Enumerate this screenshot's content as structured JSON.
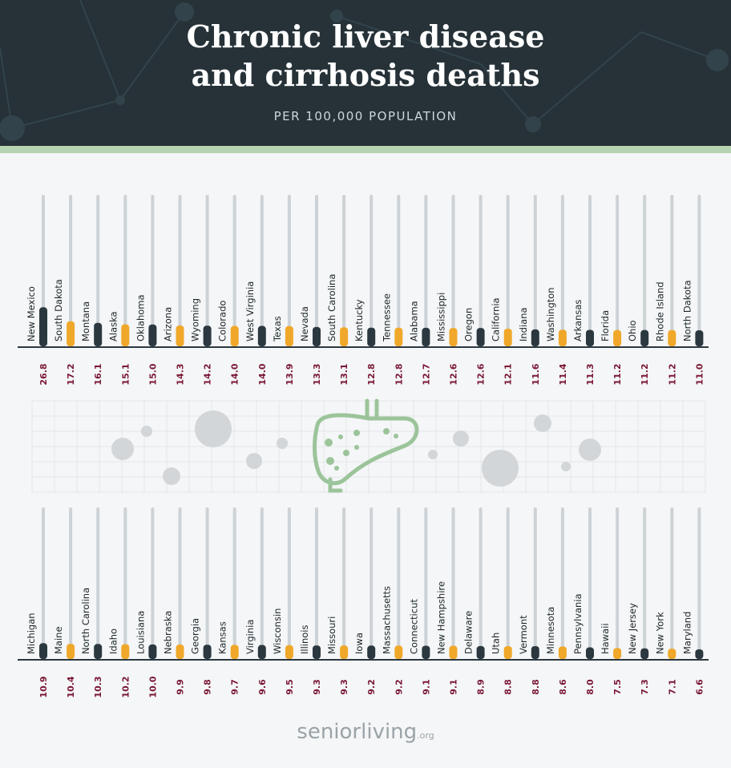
{
  "header": {
    "title_line1": "Chronic liver disease",
    "title_line2": "and cirrhosis deaths",
    "subtitle": "PER 100,000 POPULATION"
  },
  "logo": {
    "main": "seniorliving",
    "suffix": ".org"
  },
  "colors": {
    "dark": "#2b3840",
    "orange": "#f0a82a",
    "track": "#cdd2d6",
    "value": "#7a1735"
  },
  "chart_data": {
    "type": "bar",
    "title": "Chronic liver disease and cirrhosis deaths",
    "subtitle": "PER 100,000 POPULATION",
    "ylim": [
      0,
      104
    ],
    "rows": [
      {
        "categories": [
          "New Mexico",
          "South Dakota",
          "Montana",
          "Alaska",
          "Oklahoma",
          "Arizona",
          "Wyoming",
          "Colorado",
          "West Virginia",
          "Texas",
          "Nevada",
          "South Carolina",
          "Kentucky",
          "Tennessee",
          "Alabama",
          "Mississippi",
          "Oregon",
          "California",
          "Indiana",
          "Washington",
          "Arkansas",
          "Florida",
          "Ohio",
          "Rhode Island",
          "North Dakota"
        ],
        "values": [
          26.8,
          17.2,
          16.1,
          15.1,
          15.0,
          14.3,
          14.2,
          14.0,
          14.0,
          13.9,
          13.3,
          13.1,
          12.8,
          12.8,
          12.7,
          12.6,
          12.6,
          12.1,
          11.6,
          11.4,
          11.3,
          11.2,
          11.2,
          11.2,
          11.0
        ]
      },
      {
        "categories": [
          "Michigan",
          "Maine",
          "North Carolina",
          "Idaho",
          "Louisiana",
          "Nebraska",
          "Georgia",
          "Kansas",
          "Virginia",
          "Wisconsin",
          "Illinois",
          "Missouri",
          "Iowa",
          "Massachusetts",
          "Connecticut",
          "New Hampshire",
          "Delaware",
          "Utah",
          "Vermont",
          "Minnesota",
          "Pennsylvania",
          "Hawaii",
          "New Jersey",
          "New York",
          "Maryland"
        ],
        "values": [
          10.9,
          10.4,
          10.3,
          10.2,
          10.0,
          9.9,
          9.8,
          9.7,
          9.6,
          9.5,
          9.3,
          9.3,
          9.2,
          9.2,
          9.1,
          9.1,
          8.9,
          8.8,
          8.8,
          8.6,
          8.0,
          7.5,
          7.3,
          7.1,
          6.6
        ]
      }
    ]
  }
}
